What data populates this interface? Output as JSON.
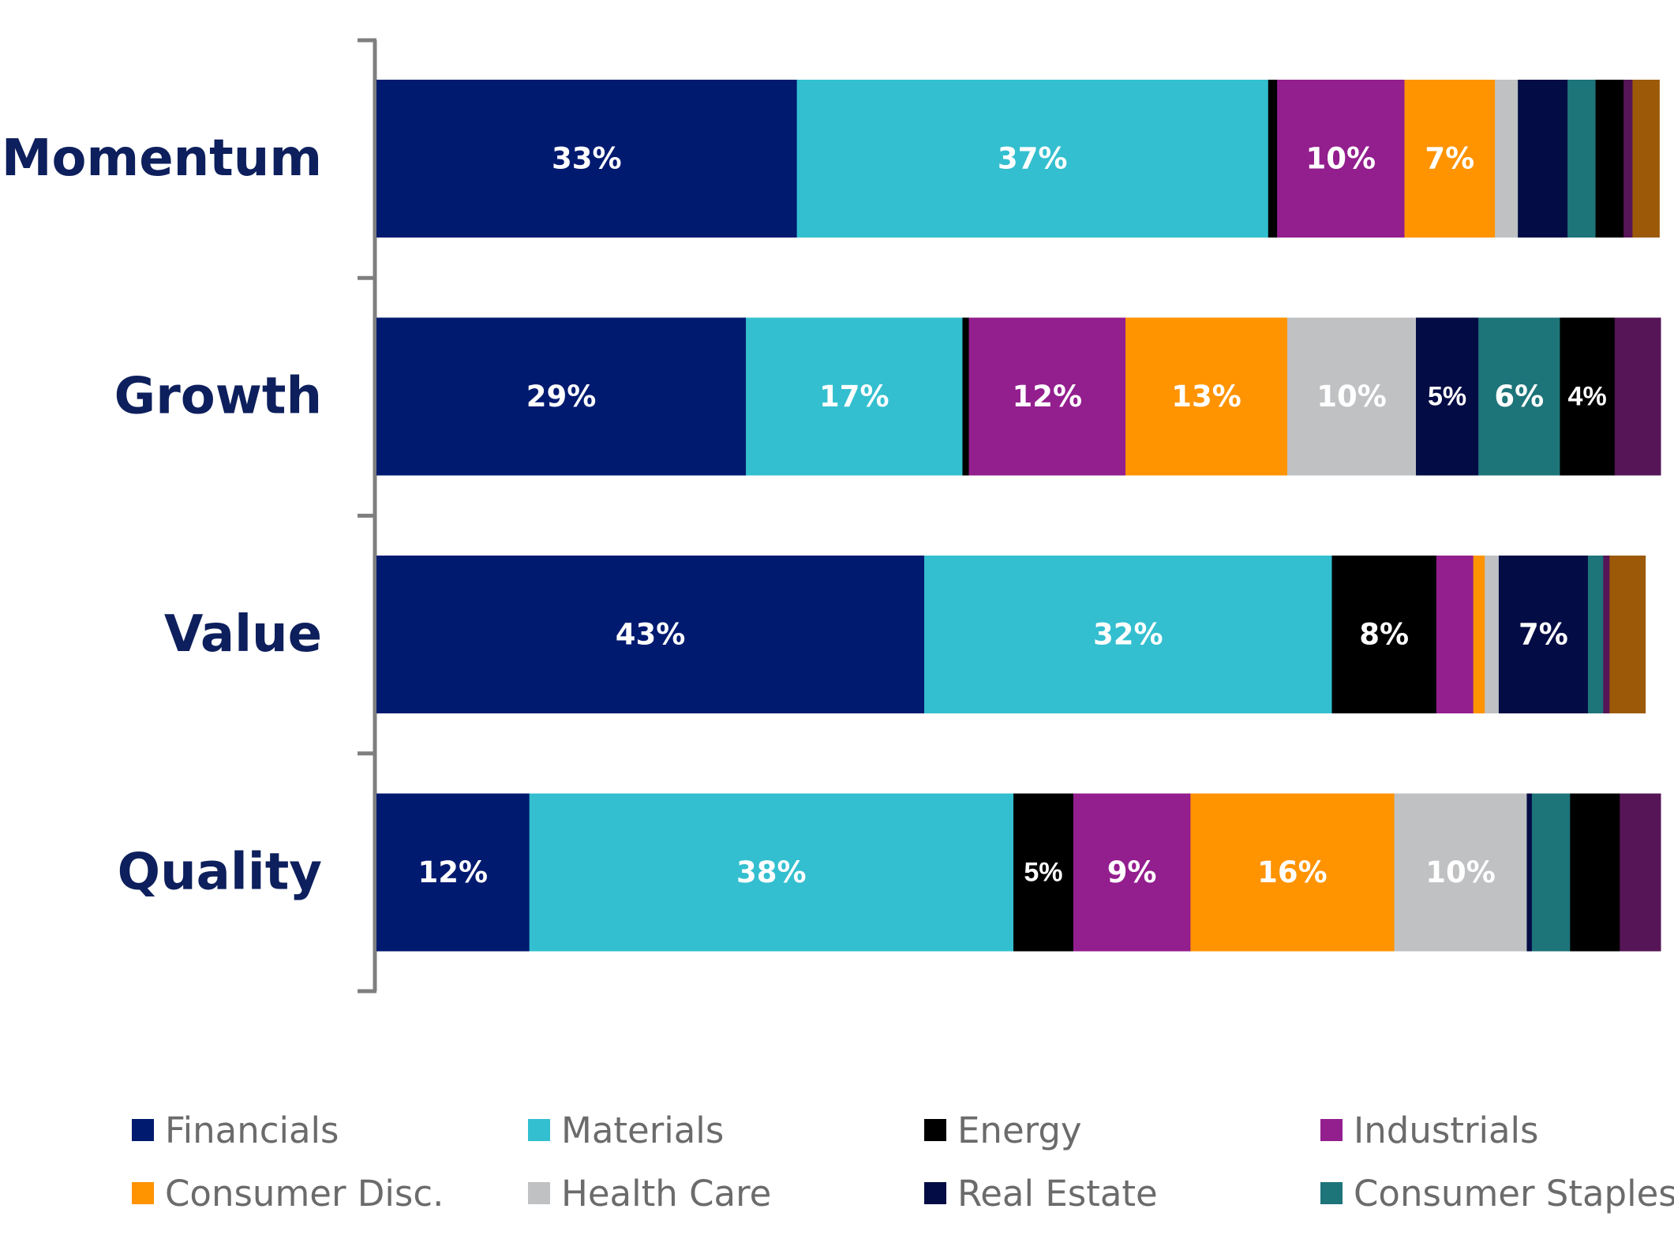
{
  "chart_data": {
    "type": "bar",
    "orientation": "horizontal",
    "stacked": true,
    "categories": [
      "Momentum",
      "Growth",
      "Value",
      "Quality"
    ],
    "xlim": [
      0,
      100
    ],
    "grid": false,
    "legend_position": "bottom",
    "series": [
      {
        "name": "Financials",
        "color": "#001a70",
        "values": [
          33,
          29,
          43,
          12
        ],
        "labels": [
          "33%",
          "29%",
          "43%",
          "12%"
        ]
      },
      {
        "name": "Materials",
        "color": "#33bfcf",
        "values": [
          37,
          17,
          32,
          38
        ],
        "labels": [
          "37%",
          "17%",
          "32%",
          "38%"
        ]
      },
      {
        "name": "Energy",
        "color": "#000000",
        "values": [
          0.7,
          0.5,
          8.2,
          4.7
        ],
        "labels": [
          "",
          "",
          "8%",
          "5%"
        ]
      },
      {
        "name": "Industrials",
        "color": "#931e8e",
        "values": [
          10,
          12.3,
          2.9,
          9.2
        ],
        "labels": [
          "10%",
          "12%",
          "",
          "9%"
        ]
      },
      {
        "name": "Consumer Disc.",
        "color": "#ff9300",
        "values": [
          7.1,
          12.7,
          0.9,
          16
        ],
        "labels": [
          "7%",
          "13%",
          "",
          "16%"
        ]
      },
      {
        "name": "Health Care",
        "color": "#bfc1c3",
        "values": [
          1.8,
          10.1,
          1.1,
          10.4
        ],
        "labels": [
          "",
          "10%",
          "",
          "10%"
        ]
      },
      {
        "name": "Real Estate",
        "color": "#030c45",
        "values": [
          3.9,
          4.9,
          7,
          0.4
        ],
        "labels": [
          "",
          "5%",
          "7%",
          ""
        ]
      },
      {
        "name": "Consumer Staples",
        "color": "#1d7479",
        "values": [
          2.2,
          6.4,
          1.2,
          3
        ],
        "labels": [
          "",
          "6%",
          "",
          ""
        ]
      },
      {
        "name": "",
        "color": "#000000",
        "values": [
          2.2,
          4.3,
          0,
          3.9
        ],
        "labels": [
          "",
          "4%",
          "",
          ""
        ]
      },
      {
        "name": "",
        "color": "#561556",
        "values": [
          0.7,
          3.6,
          0.5,
          3.2
        ],
        "labels": [
          "",
          "",
          "",
          ""
        ]
      },
      {
        "name": "",
        "color": "#9c5a08",
        "values": [
          2.1,
          0,
          2.8,
          0
        ],
        "labels": [
          "",
          "",
          "",
          ""
        ]
      }
    ]
  },
  "legend": {
    "items": [
      {
        "label": "Financials",
        "color": "#001a70"
      },
      {
        "label": "Materials",
        "color": "#33bfcf"
      },
      {
        "label": "Energy",
        "color": "#000000"
      },
      {
        "label": "Industrials",
        "color": "#931e8e"
      },
      {
        "label": "Consumer Disc.",
        "color": "#ff9300"
      },
      {
        "label": "Health Care",
        "color": "#bfc1c3"
      },
      {
        "label": "Real Estate",
        "color": "#030c45"
      },
      {
        "label": "Consumer Staples",
        "color": "#1d7479"
      }
    ]
  }
}
